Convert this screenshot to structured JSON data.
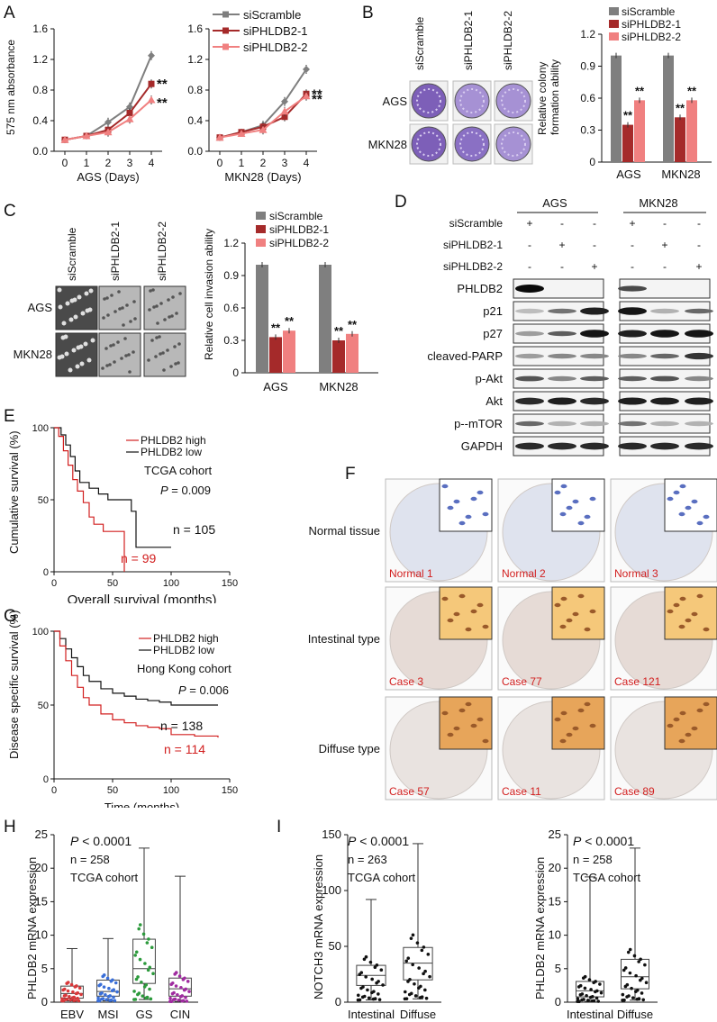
{
  "panel_letters": [
    "A",
    "B",
    "C",
    "D",
    "E",
    "F",
    "G",
    "H",
    "I"
  ],
  "colors": {
    "scramble": "#7f7f7f",
    "si1": "#a52a2a",
    "si2": "#f08080",
    "red_text": "#d22020",
    "black": "#111111"
  },
  "legend3": [
    "siScramble",
    "siPHLDB2-1",
    "siPHLDB2-2"
  ],
  "sig": "**",
  "A": {
    "ylabel": "575 nm absorbance",
    "charts": [
      {
        "xlabel": "AGS (Days)",
        "x": [
          0,
          1,
          2,
          3,
          4
        ],
        "ylim": [
          0,
          1.6
        ],
        "yticks": [
          "0.0",
          "0.4",
          "0.8",
          "1.2",
          "1.6"
        ],
        "series": [
          {
            "name": "siScramble",
            "values": [
              0.15,
              0.2,
              0.38,
              0.58,
              1.25
            ]
          },
          {
            "name": "siPHLDB2-1",
            "values": [
              0.15,
              0.2,
              0.28,
              0.5,
              0.88
            ]
          },
          {
            "name": "siPHLDB2-2",
            "values": [
              0.15,
              0.2,
              0.25,
              0.42,
              0.67
            ]
          }
        ]
      },
      {
        "xlabel": "MKN28 (Days)",
        "x": [
          0,
          1,
          2,
          3,
          4
        ],
        "ylim": [
          0,
          1.6
        ],
        "yticks": [
          "0.0",
          "0.4",
          "0.8",
          "1.2",
          "1.6"
        ],
        "series": [
          {
            "name": "siScramble",
            "values": [
              0.18,
              0.25,
              0.34,
              0.65,
              1.07
            ]
          },
          {
            "name": "siPHLDB2-1",
            "values": [
              0.18,
              0.25,
              0.32,
              0.45,
              0.75
            ]
          },
          {
            "name": "siPHLDB2-2",
            "values": [
              0.18,
              0.23,
              0.28,
              0.52,
              0.72
            ]
          }
        ]
      }
    ]
  },
  "B": {
    "col_labels": [
      "siScramble",
      "siPHLDB2-1",
      "siPHLDB2-2"
    ],
    "row_labels": [
      "AGS",
      "MKN28"
    ],
    "ylabel": [
      "Relative colony",
      "formation ability"
    ],
    "categories": [
      "AGS",
      "MKN28"
    ],
    "yticks": [
      "0",
      "0.3",
      "0.6",
      "0.9",
      "1.2"
    ],
    "ylim": [
      0,
      1.2
    ],
    "series": [
      {
        "name": "siScramble",
        "values": [
          1.0,
          1.0
        ]
      },
      {
        "name": "siPHLDB2-1",
        "values": [
          0.35,
          0.42
        ]
      },
      {
        "name": "siPHLDB2-2",
        "values": [
          0.58,
          0.58
        ]
      }
    ]
  },
  "C": {
    "col_labels": [
      "siScramble",
      "siPHLDB2-1",
      "siPHLDB2-2"
    ],
    "row_labels": [
      "AGS",
      "MKN28"
    ],
    "ylabel": "Relative cell invasion ability",
    "categories": [
      "AGS",
      "MKN28"
    ],
    "yticks": [
      "0",
      "0.3",
      "0.6",
      "0.9",
      "1.2"
    ],
    "ylim": [
      0,
      1.2
    ],
    "series": [
      {
        "name": "siScramble",
        "values": [
          1.0,
          1.0
        ]
      },
      {
        "name": "siPHLDB2-1",
        "values": [
          0.33,
          0.3
        ]
      },
      {
        "name": "siPHLDB2-2",
        "values": [
          0.39,
          0.36
        ]
      }
    ]
  },
  "D": {
    "groups": [
      "AGS",
      "MKN28"
    ],
    "conditions": [
      {
        "label": "siScramble",
        "marks": [
          "+",
          "-",
          "-",
          "+",
          "-",
          "-"
        ]
      },
      {
        "label": "siPHLDB2-1",
        "marks": [
          "-",
          "+",
          "-",
          "-",
          "+",
          "-"
        ]
      },
      {
        "label": "siPHLDB2-2",
        "marks": [
          "-",
          "-",
          "+",
          "-",
          "-",
          "+"
        ]
      }
    ],
    "blots": [
      "PHLDB2",
      "p21",
      "p27",
      "cleaved-PARP",
      "p-Akt",
      "Akt",
      "p--mTOR",
      "GAPDH"
    ]
  },
  "E": {
    "ylabel": "Cumulative survival (%)",
    "xlabel": "Overall survival (months)",
    "xticks": [
      "0",
      "50",
      "100",
      "150"
    ],
    "yticks": [
      "0",
      "50",
      "100"
    ],
    "legend": [
      "PHLDB2 high",
      "PHLDB2 low"
    ],
    "cohort": "TCGA cohort",
    "p_label": "P",
    "p_value": " = 0.009",
    "n_low": "n = 105",
    "n_high": "n = 99"
  },
  "F": {
    "row_labels": [
      "Normal tissue",
      "Intestinal type",
      "Diffuse type"
    ],
    "cases": [
      "Normal 1",
      "Normal 2",
      "Normal 3",
      "Case 3",
      "Case 77",
      "Case 121",
      "Case 57",
      "Case 11",
      "Case 89"
    ]
  },
  "G": {
    "ylabel": "Disease specific survival (%)",
    "xlabel": "Time (months)",
    "xticks": [
      "0",
      "50",
      "100",
      "150"
    ],
    "yticks": [
      "0",
      "50",
      "100"
    ],
    "legend": [
      "PHLDB2 high",
      "PHLDB2 low"
    ],
    "cohort": "Hong Kong cohort",
    "p_label": "P",
    "p_value": " = 0.006",
    "n_low": "n = 138",
    "n_high": "n = 114"
  },
  "H": {
    "ylabel": "PHLDB2 mRNA expression",
    "p_label": "P",
    "p_value": " < 0.0001",
    "n": "n = 258",
    "cohort": "TCGA cohort",
    "categories": [
      "EBV",
      "MSI",
      "GS",
      "CIN"
    ],
    "yticks": [
      "0",
      "5",
      "10",
      "15",
      "20",
      "25"
    ],
    "ylim": [
      0,
      25
    ],
    "boxes": [
      {
        "name": "EBV",
        "min": 0.2,
        "q1": 0.6,
        "median": 1.3,
        "q3": 2.4,
        "max": 8.0,
        "color": "#d8383a"
      },
      {
        "name": "MSI",
        "min": 0.2,
        "q1": 0.9,
        "median": 1.6,
        "q3": 3.3,
        "max": 9.5,
        "color": "#3a6fd8"
      },
      {
        "name": "GS",
        "min": 0.4,
        "q1": 2.8,
        "median": 5.0,
        "q3": 9.4,
        "max": 23.0,
        "color": "#2c9a3c"
      },
      {
        "name": "CIN",
        "min": 0.1,
        "q1": 0.9,
        "median": 2.0,
        "q3": 3.6,
        "max": 18.8,
        "color": "#a02ca0"
      }
    ]
  },
  "I": {
    "charts": [
      {
        "ylabel": "NOTCH3 mRNA expression",
        "p_label": "P",
        "p_value": " < 0.0001",
        "n": "n = 263",
        "cohort": "TCGA cohort",
        "categories": [
          "Intestinal",
          "Diffuse"
        ],
        "yticks": [
          "0",
          "50",
          "100",
          "150"
        ],
        "ylim": [
          0,
          150
        ],
        "boxes": [
          {
            "name": "Intestinal",
            "min": 2,
            "q1": 15,
            "median": 24,
            "q3": 33,
            "max": 92
          },
          {
            "name": "Diffuse",
            "min": 3,
            "q1": 20,
            "median": 35,
            "q3": 49,
            "max": 142
          }
        ]
      },
      {
        "ylabel": "PHLDB2 mRNA expression",
        "p_label": "P",
        "p_value": " < 0.0001",
        "n": "n = 258",
        "cohort": "TCGA cohort",
        "categories": [
          "Intestinal",
          "Diffuse"
        ],
        "yticks": [
          "0",
          "5",
          "10",
          "15",
          "20",
          "25"
        ],
        "ylim": [
          0,
          25
        ],
        "boxes": [
          {
            "name": "Intestinal",
            "min": 0.1,
            "q1": 0.8,
            "median": 1.7,
            "q3": 3.1,
            "max": 18.7
          },
          {
            "name": "Diffuse",
            "min": 0.3,
            "q1": 2.0,
            "median": 3.8,
            "q3": 6.4,
            "max": 23.0
          }
        ]
      }
    ]
  }
}
